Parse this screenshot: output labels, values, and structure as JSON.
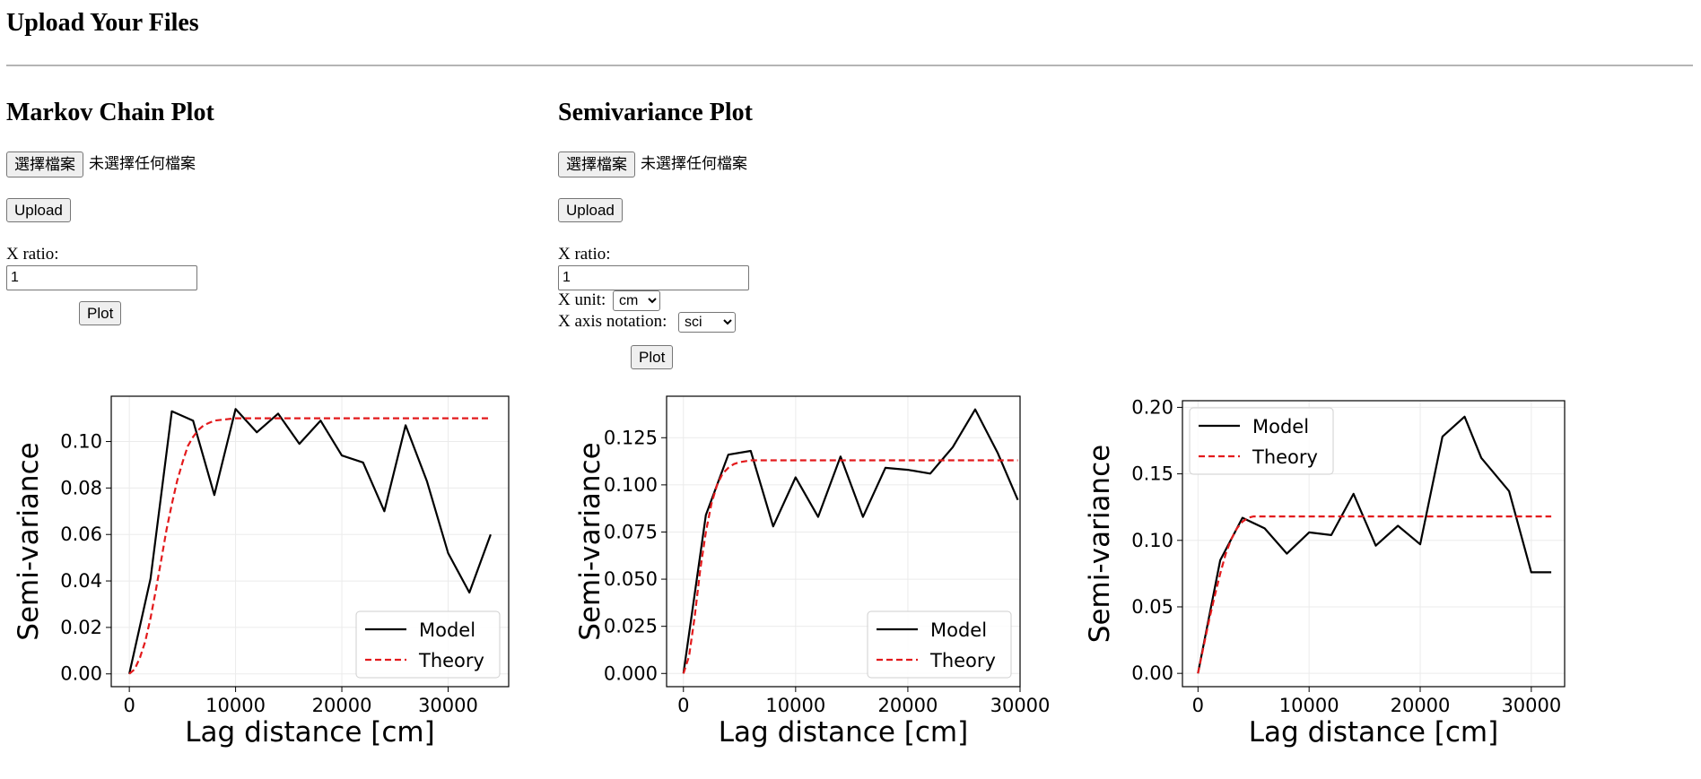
{
  "page": {
    "title": "Upload Your Files"
  },
  "markov": {
    "heading": "Markov Chain Plot",
    "file_button": "選擇檔案",
    "file_status": "未選擇任何檔案",
    "upload_label": "Upload",
    "x_ratio_label": "X ratio:",
    "x_ratio_value": "1",
    "plot_label": "Plot"
  },
  "semivariance": {
    "heading": "Semivariance Plot",
    "file_button": "選擇檔案",
    "file_status": "未選擇任何檔案",
    "upload_label": "Upload",
    "x_ratio_label": "X ratio:",
    "x_ratio_value": "1",
    "x_unit_label": "X unit:",
    "x_unit_selected": "cm",
    "x_axis_notation_label": "X axis notation:",
    "x_axis_notation_selected": "sci",
    "plot_label": "Plot"
  },
  "chart_data": [
    {
      "type": "line",
      "xlabel": "Lag distance [cm]",
      "ylabel": "Semi-variance",
      "xlim": [
        -1700,
        35700
      ],
      "ylim": [
        -0.0055,
        0.1195
      ],
      "xticks": [
        0,
        10000,
        20000,
        30000
      ],
      "xtick_labels": [
        "0",
        "10000",
        "20000",
        "30000"
      ],
      "yticks": [
        0.0,
        0.02,
        0.04,
        0.06,
        0.08,
        0.1
      ],
      "ytick_labels": [
        "0.00",
        "0.02",
        "0.04",
        "0.06",
        "0.08",
        "0.10"
      ],
      "grid": true,
      "legend_position": "lower-right",
      "series": [
        {
          "name": "Model",
          "color": "#000000",
          "style": "solid",
          "x": [
            0,
            2000,
            4000,
            6000,
            8000,
            10000,
            12000,
            14000,
            16000,
            18000,
            20000,
            22000,
            24000,
            26000,
            28000,
            30000,
            32000,
            34000
          ],
          "y": [
            0.0,
            0.041,
            0.113,
            0.109,
            0.077,
            0.114,
            0.104,
            0.112,
            0.099,
            0.109,
            0.094,
            0.091,
            0.07,
            0.107,
            0.083,
            0.052,
            0.035,
            0.06
          ]
        },
        {
          "name": "Theory",
          "color": "#e31a1c",
          "style": "dashed",
          "x": [
            0,
            500,
            1000,
            1500,
            2000,
            2500,
            3000,
            3500,
            4000,
            4500,
            5000,
            5500,
            6000,
            6500,
            7000,
            7500,
            8000,
            9000,
            10000,
            12000,
            16000,
            22000,
            28000,
            34000
          ],
          "y": [
            0.0,
            0.002,
            0.007,
            0.014,
            0.024,
            0.036,
            0.049,
            0.062,
            0.073,
            0.083,
            0.091,
            0.098,
            0.102,
            0.105,
            0.107,
            0.108,
            0.109,
            0.1095,
            0.11,
            0.11,
            0.11,
            0.11,
            0.11,
            0.11
          ]
        }
      ]
    },
    {
      "type": "line",
      "xlabel": "Lag distance [cm]",
      "ylabel": "Semi-variance",
      "xlim": [
        -1500,
        30000
      ],
      "ylim": [
        -0.007,
        0.147
      ],
      "xticks": [
        0,
        10000,
        20000,
        30000
      ],
      "xtick_labels": [
        "0",
        "10000",
        "20000",
        "30000"
      ],
      "yticks": [
        0.0,
        0.025,
        0.05,
        0.075,
        0.1,
        0.125
      ],
      "ytick_labels": [
        "0.000",
        "0.025",
        "0.050",
        "0.075",
        "0.100",
        "0.125"
      ],
      "grid": true,
      "legend_position": "lower-right",
      "series": [
        {
          "name": "Model",
          "color": "#000000",
          "style": "solid",
          "x": [
            0,
            2000,
            4000,
            6000,
            8000,
            10000,
            12000,
            14000,
            16000,
            18000,
            20000,
            22000,
            24000,
            26000,
            28000,
            29800
          ],
          "y": [
            0.0,
            0.084,
            0.116,
            0.118,
            0.078,
            0.104,
            0.083,
            0.115,
            0.083,
            0.109,
            0.108,
            0.106,
            0.12,
            0.14,
            0.117,
            0.092
          ]
        },
        {
          "name": "Theory",
          "color": "#e31a1c",
          "style": "dashed",
          "x": [
            0,
            500,
            1000,
            1500,
            2000,
            2500,
            3000,
            3500,
            4000,
            4500,
            5000,
            5500,
            6000,
            7000,
            8000,
            10000,
            15000,
            20000,
            25000,
            29800
          ],
          "y": [
            0.0,
            0.009,
            0.03,
            0.055,
            0.075,
            0.09,
            0.1,
            0.106,
            0.109,
            0.111,
            0.112,
            0.1125,
            0.113,
            0.113,
            0.113,
            0.113,
            0.113,
            0.113,
            0.113,
            0.113
          ]
        }
      ]
    },
    {
      "type": "line",
      "xlabel": "Lag distance [cm]",
      "ylabel": "Semi-variance",
      "xlim": [
        -1400,
        33000
      ],
      "ylim": [
        -0.01,
        0.205
      ],
      "xticks": [
        0,
        10000,
        20000,
        30000
      ],
      "xtick_labels": [
        "0",
        "10000",
        "20000",
        "30000"
      ],
      "yticks": [
        0.0,
        0.05,
        0.1,
        0.15,
        0.2
      ],
      "ytick_labels": [
        "0.00",
        "0.05",
        "0.10",
        "0.15",
        "0.20"
      ],
      "grid": true,
      "legend_position": "upper-left",
      "series": [
        {
          "name": "Model",
          "color": "#000000",
          "style": "solid",
          "x": [
            0,
            2000,
            4000,
            6000,
            8000,
            10000,
            12000,
            14000,
            16000,
            18000,
            20000,
            22000,
            24000,
            25500,
            28000,
            30000,
            31800
          ],
          "y": [
            0.0,
            0.085,
            0.117,
            0.109,
            0.09,
            0.106,
            0.104,
            0.135,
            0.096,
            0.111,
            0.097,
            0.178,
            0.193,
            0.162,
            0.137,
            0.076,
            0.076
          ]
        },
        {
          "name": "Theory",
          "color": "#e31a1c",
          "style": "dashed",
          "x": [
            0,
            500,
            1000,
            1500,
            2000,
            2500,
            3000,
            3500,
            4000,
            4500,
            5000,
            6000,
            8000,
            12000,
            18000,
            24000,
            31800
          ],
          "y": [
            0.0,
            0.02,
            0.04,
            0.058,
            0.075,
            0.09,
            0.101,
            0.109,
            0.114,
            0.117,
            0.118,
            0.118,
            0.118,
            0.118,
            0.118,
            0.118,
            0.118
          ]
        }
      ]
    }
  ]
}
